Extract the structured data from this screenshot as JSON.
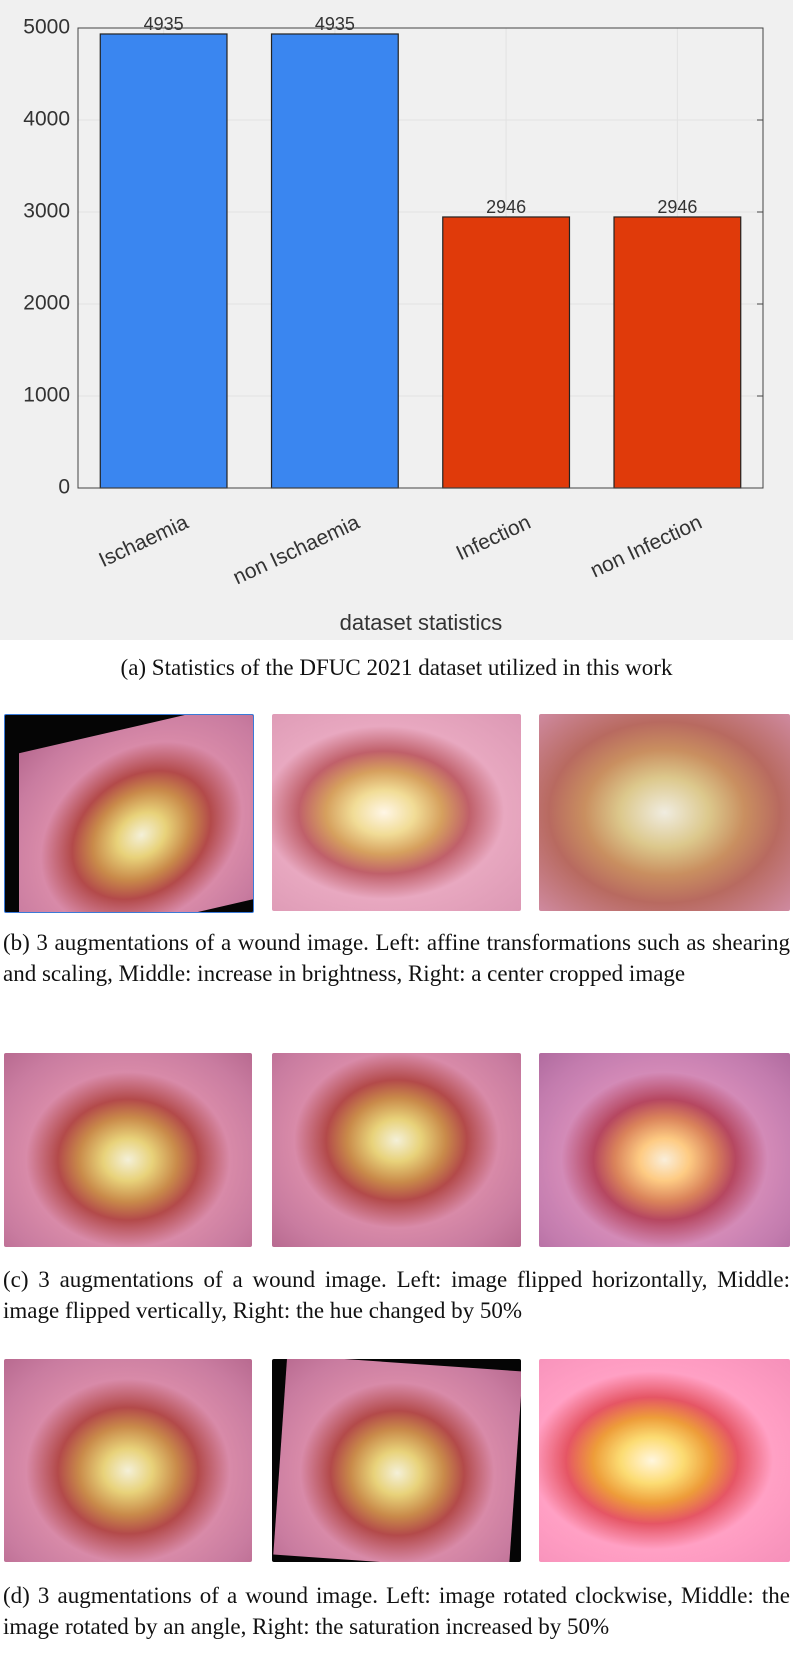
{
  "chart_data": {
    "type": "bar",
    "categories": [
      "Ischaemia",
      "non Ischaemia",
      "Infection",
      "non Infection"
    ],
    "values": [
      4935,
      4935,
      2946,
      2946
    ],
    "colors": [
      "#3a86f0",
      "#3a86f0",
      "#e03a0a",
      "#e03a0a"
    ],
    "ylim": [
      0,
      5000
    ],
    "yticks": [
      0,
      1000,
      2000,
      3000,
      4000,
      5000
    ],
    "grid": true,
    "xlabel": "dataset statistics"
  },
  "captions": [
    "(a) Statistics of the DFUC 2021 dataset utilized in this work",
    "(b) 3 augmentations of a wound image. Left: affine transformations such as shearing and scaling, Middle: increase in brightness, Right: a center cropped image",
    "(c) 3 augmentations of a wound image. Left: image flipped horizontally, Middle: image flipped vertically, Right: the hue changed by 50%",
    "(d) 3 augmentations of a wound image. Left: image rotated clockwise, Middle: the image rotated by an angle, Right: the saturation increased by 50%"
  ]
}
